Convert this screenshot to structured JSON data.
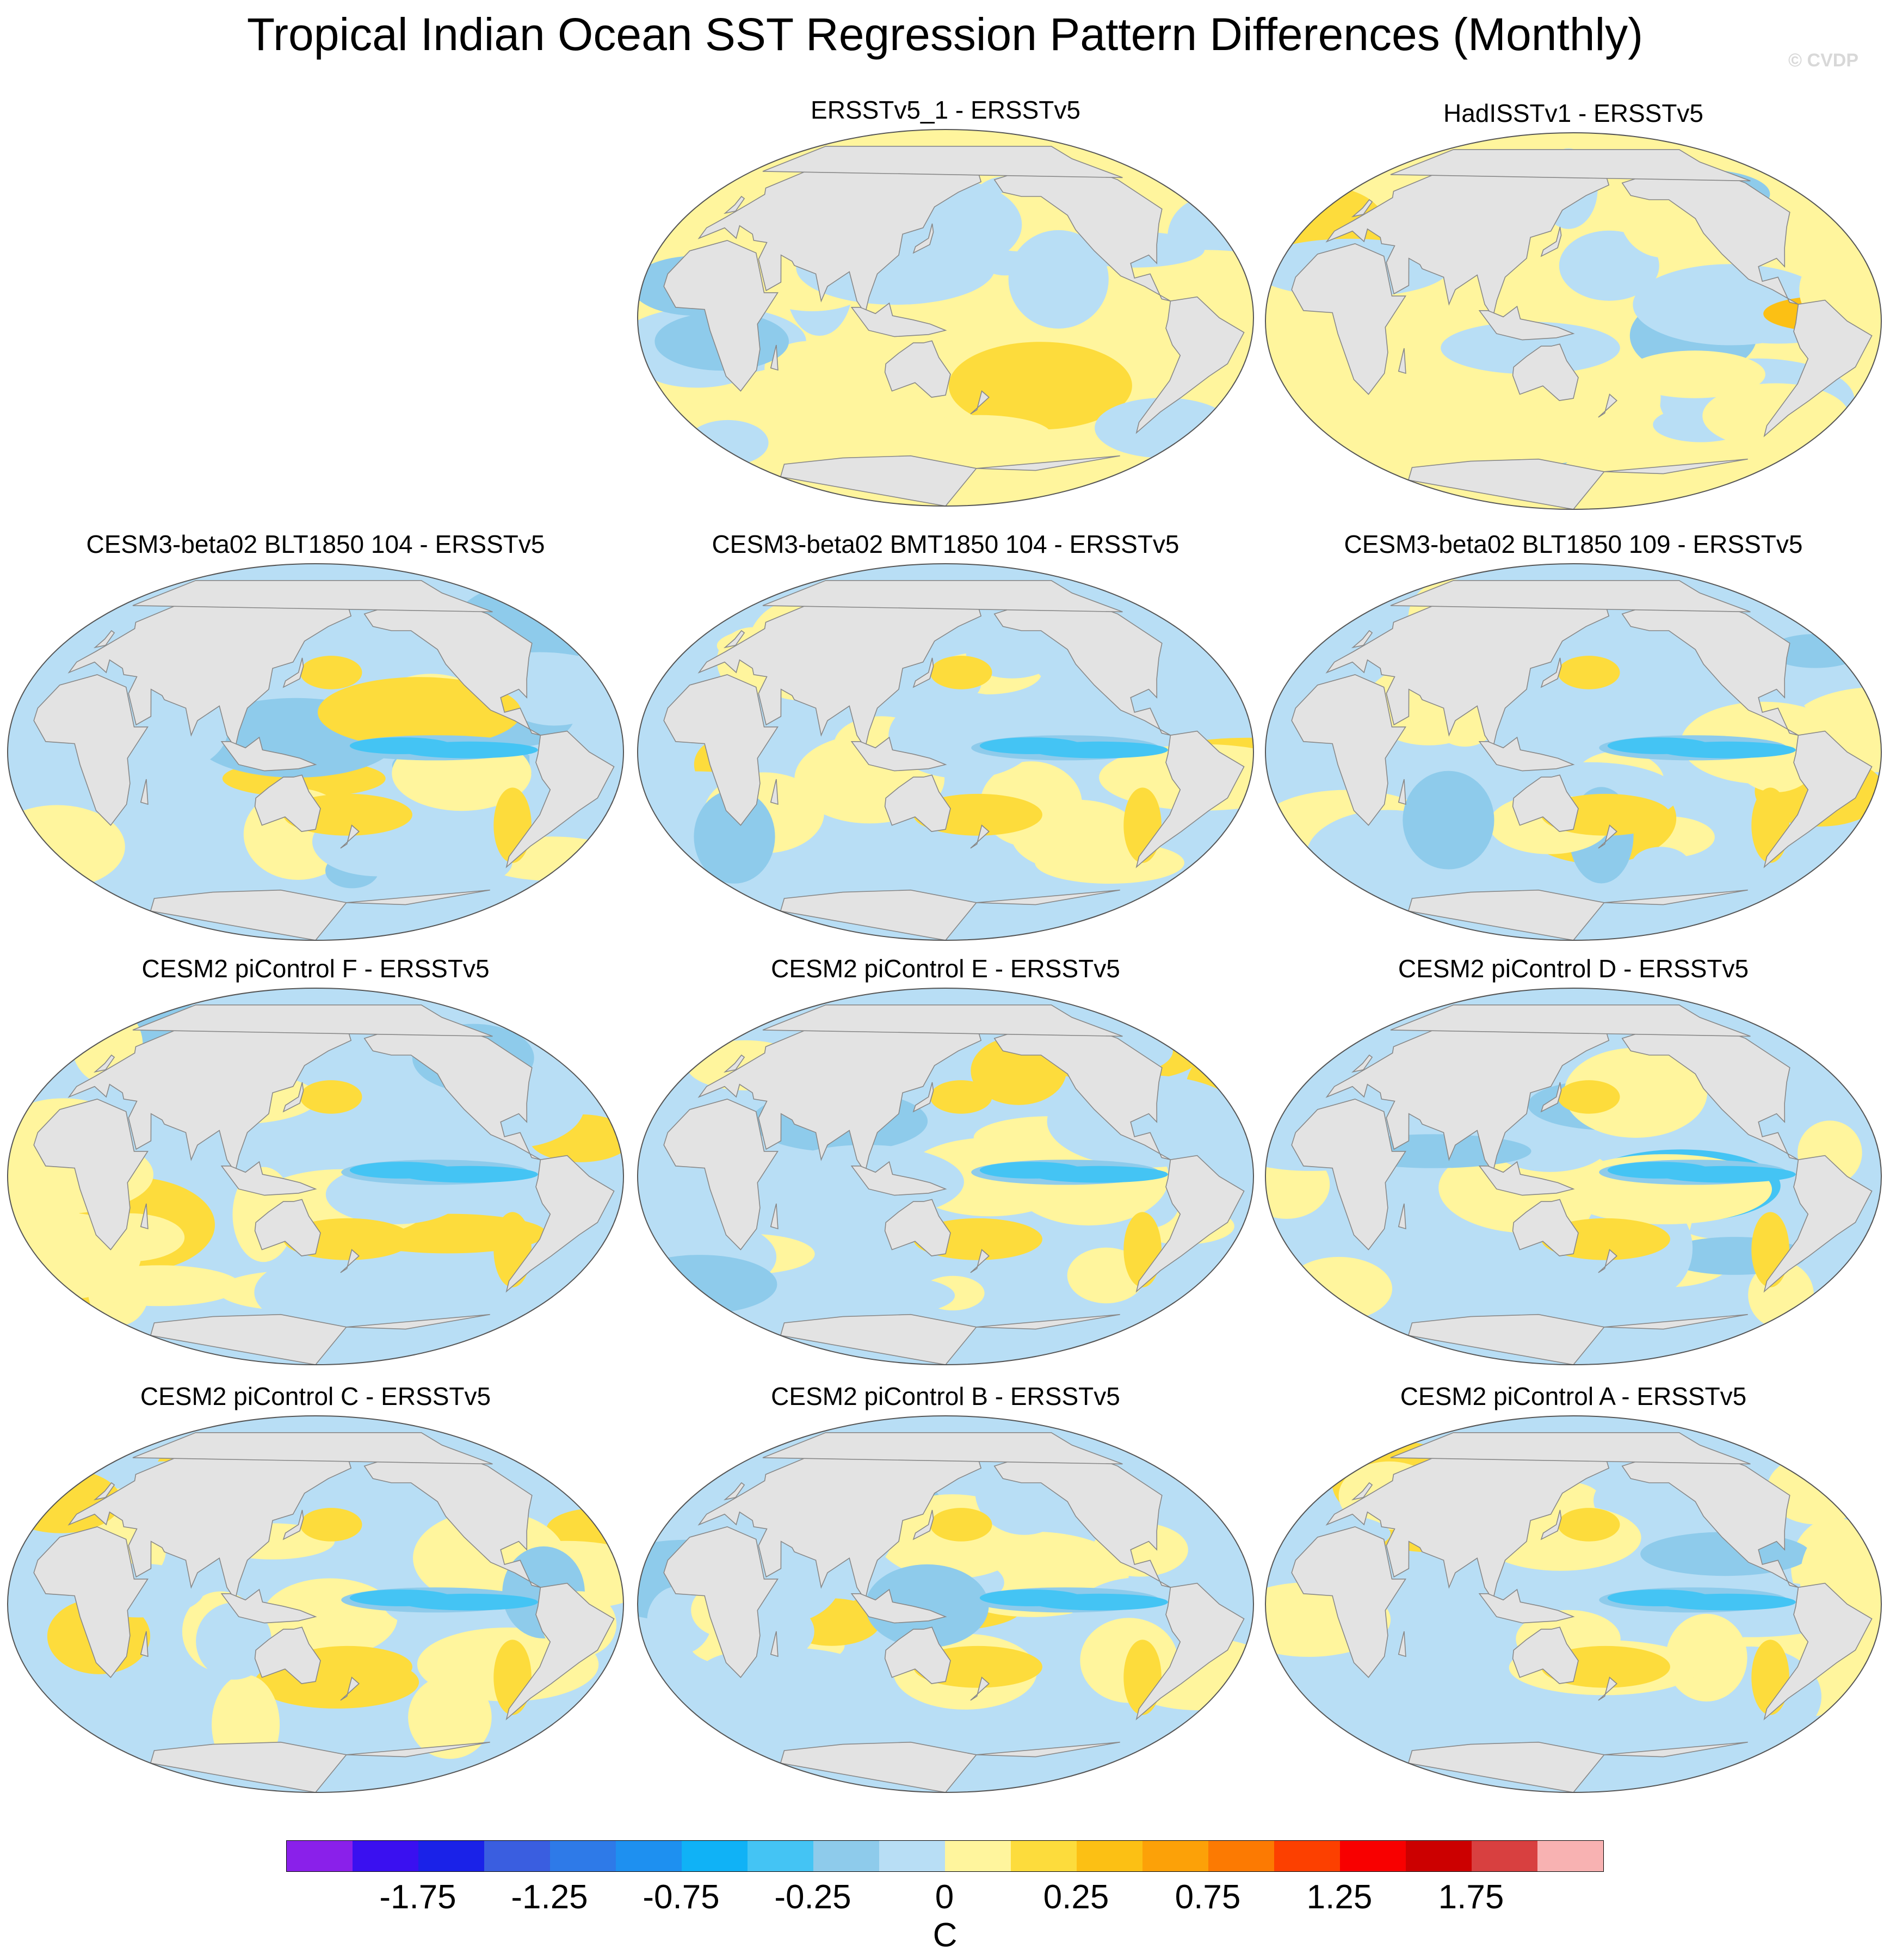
{
  "title": "Tropical Indian Ocean SST Regression Pattern Differences (Monthly)",
  "watermark": "© CVDP",
  "colors": {
    "ocean_neutral_neg": "#b8def5",
    "ocean_neutral_pos": "#fff59d",
    "land": "#e3e3e3",
    "coast": "#888888"
  },
  "panels": [
    {
      "title": "ERSSTv5_1 - ERSSTv5",
      "variant": 0
    },
    {
      "title": "HadISSTv1 - ERSSTv5",
      "variant": 1
    },
    {
      "title": "CESM3-beta02 BLT1850 104 - ERSSTv5",
      "variant": 2
    },
    {
      "title": "CESM3-beta02 BMT1850 104 - ERSSTv5",
      "variant": 3
    },
    {
      "title": "CESM3-beta02 BLT1850 109 - ERSSTv5",
      "variant": 4
    },
    {
      "title": "CESM2 piControl F - ERSSTv5",
      "variant": 5
    },
    {
      "title": "CESM2 piControl E - ERSSTv5",
      "variant": 6
    },
    {
      "title": "CESM2 piControl D - ERSSTv5",
      "variant": 7
    },
    {
      "title": "CESM2 piControl C - ERSSTv5",
      "variant": 8
    },
    {
      "title": "CESM2 piControl B - ERSSTv5",
      "variant": 9
    },
    {
      "title": "CESM2 piControl A - ERSSTv5",
      "variant": 10
    }
  ],
  "colorbar": {
    "colors": [
      "#8a20ea",
      "#3a10f0",
      "#1a22e8",
      "#3a5ee0",
      "#2e7ae8",
      "#1e90f0",
      "#10b2f6",
      "#44c4f4",
      "#8ecbeb",
      "#b8def5",
      "#fff59d",
      "#fddc3c",
      "#fcc014",
      "#fca108",
      "#fc7a02",
      "#fc4000",
      "#f80000",
      "#cc0000",
      "#d84040",
      "#f8b2b2"
    ],
    "ticks": [
      "-1.75",
      "-1.25",
      "-0.75",
      "-0.25",
      "0",
      "0.25",
      "0.75",
      "1.25",
      "1.75"
    ],
    "tick_index": [
      2,
      4,
      6,
      8,
      10,
      12,
      14,
      16,
      18
    ],
    "units": "C"
  }
}
